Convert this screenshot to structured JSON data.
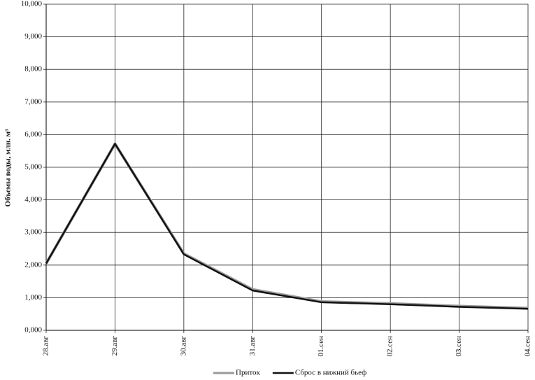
{
  "chart_data": {
    "type": "line",
    "y_label": "Объемы воды, млн. м³",
    "categories": [
      "28.авг",
      "29.авг",
      "30.авг",
      "31.авг",
      "01.сен",
      "02.сен",
      "03.сен",
      "04.сен"
    ],
    "series": [
      {
        "name": "Приток",
        "color": "#9a9a9a",
        "values": [
          2.05,
          5.72,
          2.35,
          1.25,
          0.88,
          0.82,
          0.74,
          0.68
        ]
      },
      {
        "name": "Сброс в нижний бьеф",
        "color": "#111111",
        "values": [
          2.05,
          5.72,
          2.33,
          1.22,
          0.86,
          0.8,
          0.72,
          0.66
        ]
      }
    ],
    "ylim": [
      0,
      10
    ],
    "yticks": [
      {
        "value": 0,
        "label": "0,000"
      },
      {
        "value": 1,
        "label": "1,000"
      },
      {
        "value": 2,
        "label": "2,000"
      },
      {
        "value": 3,
        "label": "3,000"
      },
      {
        "value": 4,
        "label": "4,000"
      },
      {
        "value": 5,
        "label": "5,000"
      },
      {
        "value": 6,
        "label": "6,000"
      },
      {
        "value": 7,
        "label": "7,000"
      },
      {
        "value": 8,
        "label": "8,000"
      },
      {
        "value": 9,
        "label": "9,000"
      },
      {
        "value": 10,
        "label": "10,000"
      }
    ],
    "grid": true
  }
}
